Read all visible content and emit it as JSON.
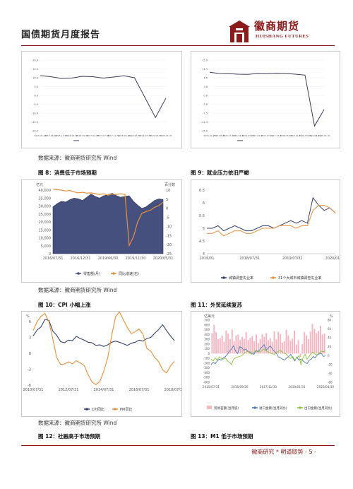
{
  "header": {
    "title": "国债期货月度报告",
    "logo_cn": "徽商期货",
    "logo_en": "HUISHANG FUTURES",
    "accent": "#8b1a1a"
  },
  "rows": {
    "row1_source": "数据来源：徽商期货研究所   Wind",
    "fig8_caption": "图 8：消费低于市场预期",
    "fig9_caption": "图 9：就业压力依旧严峻",
    "row2_source": "数据来源：徽商期货研究所   Wind",
    "fig10_caption": "图 10：CPI 小幅上涨",
    "fig11_caption": "图 11：外贸延续复苏",
    "row3_source": "数据来源：徽商期货研究所   Wind",
    "fig12_caption": "图 12：社融高于市场预期",
    "fig13_caption": "图 13：M1 低于市场预期"
  },
  "footer": {
    "text": "徽商研究 * 明道取势 - 5 -"
  },
  "chart_data": [
    {
      "id": "top-left",
      "type": "line",
      "x": [
        "2015-01-28",
        "2015-06-30",
        "2015-11-30",
        "2016-04-30",
        "2016-09-30",
        "2017-02-28",
        "2017-07-31",
        "2017-12-31",
        "2018-05-31",
        "2018-10-31",
        "2019-03-31",
        "2019-08-31",
        "2020-01-31"
      ],
      "series": [
        {
          "values": [
            11.2,
            10.6,
            9.6,
            9.8,
            10.8,
            10.6,
            9.8,
            10.4,
            11.1,
            10.0,
            -1.2,
            -12.5,
            -1.5
          ]
        }
      ],
      "ylim": [
        -20,
        20
      ],
      "color": "#3b3b5a"
    },
    {
      "id": "top-right",
      "type": "line",
      "x": [
        "2015-01-28",
        "2015-06-30",
        "2015-11-30",
        "2016-04-30",
        "2016-09-30",
        "2017-02-28",
        "2017-07-31",
        "2017-12-31",
        "2018-05-31",
        "2018-10-31",
        "2019-03-31",
        "2019-08-31",
        "2020-01-31"
      ],
      "series": [
        {
          "values": [
            9.8,
            9.3,
            9.2,
            9.0,
            8.9,
            9.3,
            9.2,
            9.4,
            9.3,
            9.0,
            8.6,
            -13.0,
            -6.0
          ]
        }
      ],
      "ylim": [
        -15,
        15
      ],
      "color": "#3b3b5a"
    },
    {
      "id": "fig8",
      "type": "area",
      "x_ticks": [
        "2016/07/31",
        "2016/12/31",
        "2019/06/30",
        "2019/11/30",
        "2020/05/31"
      ],
      "y_left_ticks": [
        "40,000",
        "35,000",
        "30,000",
        "25,000",
        "20,000",
        "15,000",
        "10,000",
        "5,000",
        "0"
      ],
      "y_right_ticks": [
        "10",
        "5",
        "0",
        "-5",
        "-10",
        "-15",
        "-20",
        "-25"
      ],
      "unit_left": "亿元",
      "unit_right": "百分数",
      "series": [
        {
          "name": "零售额(月)",
          "color": "#45507e",
          "values": [
            29500,
            31500,
            33000,
            32500,
            34000,
            35000,
            34500,
            33500,
            35500,
            37500,
            36000,
            35000,
            36500,
            37000,
            38000,
            36500,
            35500,
            36000,
            36500,
            33000,
            30500,
            28500,
            29500,
            31500,
            33500,
            34500,
            34000
          ]
        },
        {
          "name": "同比增速(右)",
          "color": "#e88f3a",
          "values": [
            10.5,
            10.2,
            10.0,
            9.5,
            9.8,
            9.0,
            8.5,
            8.8,
            8.3,
            8.5,
            8.0,
            7.5,
            8.0,
            7.2,
            7.8,
            7.5,
            8.0,
            7.6,
            -20.5,
            -15.8,
            -7.5,
            -2.8,
            -1.8,
            -1.1,
            0.5,
            1.5,
            3.3
          ]
        }
      ]
    },
    {
      "id": "fig9",
      "type": "line",
      "x_ticks": [
        "2016/01",
        "2018/07/31",
        "2019/07/31",
        "2020/01/31"
      ],
      "y_ticks": [
        "6.5",
        "6",
        "5.5",
        "5",
        "4.5",
        "4"
      ],
      "series": [
        {
          "name": "城镇调查失业率",
          "color": "#34406e",
          "values": [
            5.0,
            5.0,
            5.1,
            4.9,
            5.0,
            5.1,
            5.0,
            4.9,
            4.9,
            5.0,
            5.1,
            5.1,
            5.0,
            5.1,
            5.2,
            5.3,
            5.2,
            5.3,
            5.2,
            6.2,
            5.9,
            5.7,
            5.8,
            5.6
          ]
        },
        {
          "name": "31个大城市城镇调查失业率",
          "color": "#e88f3a",
          "values": [
            4.8,
            4.8,
            4.9,
            4.7,
            4.8,
            4.9,
            4.9,
            4.8,
            4.8,
            4.9,
            5.0,
            5.0,
            5.0,
            5.1,
            5.1,
            5.1,
            5.0,
            5.1,
            5.1,
            5.7,
            5.9,
            5.9,
            5.8,
            5.6
          ]
        }
      ]
    },
    {
      "id": "fig10",
      "type": "line",
      "x_ticks": [
        "2010/07/31",
        "2012/07/31",
        "2014/07/31",
        "2016/07/31",
        "2018/07/31"
      ],
      "y_ticks": [
        "6",
        "3",
        "0",
        "-3",
        "-6"
      ],
      "series": [
        {
          "name": "CPI同比",
          "color": "#34406e",
          "values": [
            3.3,
            4.4,
            5.0,
            6.4,
            6.2,
            4.2,
            3.4,
            2.2,
            2.0,
            2.5,
            2.4,
            3.2,
            2.8,
            2.5,
            2.1,
            2.0,
            1.5,
            1.6,
            1.3,
            1.6,
            2.1,
            2.3,
            2.1,
            1.8,
            1.5,
            1.9,
            2.1,
            2.5,
            2.3,
            2.8,
            3.0,
            3.8,
            4.5,
            5.4,
            4.3,
            3.3,
            2.4
          ]
        },
        {
          "name": "PPI同比",
          "color": "#e88f3a",
          "values": [
            4.3,
            6.0,
            7.0,
            7.5,
            6.0,
            2.7,
            -0.8,
            -2.1,
            -2.0,
            -1.6,
            -2.0,
            -1.4,
            -1.8,
            -2.3,
            -4.0,
            -5.4,
            -5.9,
            -5.3,
            -3.4,
            -0.8,
            3.3,
            6.9,
            7.8,
            6.3,
            4.9,
            3.7,
            4.1,
            4.6,
            3.6,
            0.9,
            0.4,
            -0.8,
            -1.6,
            -3.1,
            -3.7,
            -2.4,
            -1.5
          ]
        }
      ]
    },
    {
      "id": "fig11",
      "type": "bar",
      "x_ticks": [
        "2015/07/31",
        "2016/09/30",
        "2017/11/30",
        "2019/01/31",
        "2020/04/30"
      ],
      "y_left_ticks": [
        "700",
        "600",
        "500",
        "400",
        "300",
        "200",
        "100",
        "0",
        "-100",
        "-200",
        "-300",
        "-400",
        "-500",
        "-600"
      ],
      "y_right_ticks": [
        "80",
        "60",
        "40",
        "20",
        "0",
        "-20",
        "-40",
        "-60"
      ],
      "unit_left": "亿美元",
      "unit_right": "%",
      "series": [
        {
          "name": "贸易差额(当月值)",
          "color": "#f2b8c2",
          "values": [
            430,
            600,
            450,
            300,
            320,
            380,
            250,
            480,
            420,
            300,
            500,
            260,
            380,
            400,
            280,
            350,
            310,
            450,
            290,
            330,
            360,
            260,
            400,
            220,
            300,
            410,
            350,
            430,
            280,
            320,
            250,
            470,
            300,
            460,
            410,
            230,
            260,
            500,
            380,
            270,
            310,
            480,
            190,
            280,
            -70,
            200,
            450,
            380,
            300,
            460,
            620,
            520,
            430,
            470,
            580,
            400,
            420
          ]
        },
        {
          "name": "进口金额(当月同比)",
          "color": "#4f78b8",
          "values": [
            -20,
            -15,
            -18,
            -12,
            -8,
            -10,
            -5,
            -2,
            3,
            10,
            15,
            22,
            10,
            5,
            20,
            18,
            12,
            15,
            10,
            8,
            5,
            3,
            12,
            8,
            15,
            20,
            25,
            12,
            18,
            22,
            15,
            10,
            5,
            -3,
            -5,
            -8,
            -10,
            -5,
            -2,
            3,
            -5,
            -12,
            -3,
            -10,
            -8,
            -12,
            -15,
            -18,
            -10,
            -8,
            -2,
            -5,
            2,
            4,
            5,
            -2,
            0
          ]
        },
        {
          "name": "出口金额(当月同比)",
          "color": "#8dc63f",
          "values": [
            -8,
            -12,
            -5,
            -10,
            -3,
            -6,
            -8,
            -5,
            -12,
            -15,
            -20,
            -8,
            -5,
            -3,
            -2,
            0,
            5,
            8,
            10,
            6,
            3,
            8,
            12,
            10,
            8,
            12,
            15,
            10,
            8,
            6,
            4,
            3,
            7,
            10,
            12,
            6,
            5,
            3,
            -4,
            -6,
            -2,
            -10,
            -5,
            0,
            -20,
            -5,
            3,
            -8,
            -2,
            5,
            8,
            3,
            2,
            7,
            10,
            9,
            11
          ]
        }
      ]
    }
  ]
}
